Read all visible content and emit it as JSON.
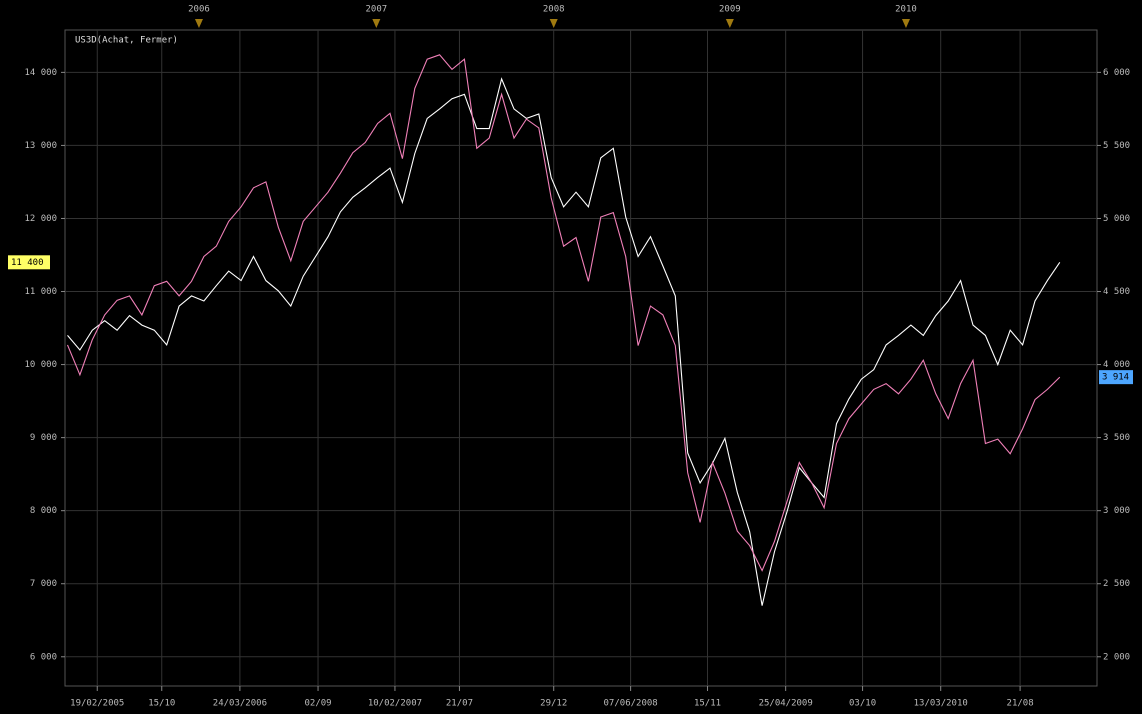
{
  "chart_data": {
    "type": "line",
    "title": "US3D(Achat, Fermer)",
    "x": [
      0,
      1,
      2,
      3,
      4,
      5,
      6,
      7,
      8,
      9,
      10,
      11,
      12,
      13,
      14,
      15,
      16,
      17,
      18,
      19,
      20,
      21,
      22,
      23,
      24,
      25,
      26,
      27,
      28,
      29,
      30,
      31,
      32,
      33,
      34,
      35,
      36,
      37,
      38,
      39,
      40,
      41,
      42,
      43,
      44,
      45,
      46,
      47,
      48,
      49,
      50,
      51,
      52,
      53,
      54,
      55,
      56,
      57,
      58,
      59,
      60,
      61,
      62,
      63,
      64,
      65,
      66,
      67,
      68,
      69,
      70,
      71,
      72,
      73,
      74,
      75,
      76,
      77,
      78,
      79,
      80
    ],
    "xlim": [
      -0.2,
      83
    ],
    "xticks": [
      {
        "value": 2.4,
        "label": "19/02/2005"
      },
      {
        "value": 7.6,
        "label": "15/10"
      },
      {
        "value": 13.9,
        "label": "24/03/2006"
      },
      {
        "value": 20.2,
        "label": "02/09"
      },
      {
        "value": 26.4,
        "label": "10/02/2007"
      },
      {
        "value": 31.6,
        "label": "21/07"
      },
      {
        "value": 39.2,
        "label": "29/12"
      },
      {
        "value": 45.4,
        "label": "07/06/2008"
      },
      {
        "value": 51.6,
        "label": "15/11"
      },
      {
        "value": 57.9,
        "label": "25/04/2009"
      },
      {
        "value": 64.1,
        "label": "03/10"
      },
      {
        "value": 70.4,
        "label": "13/03/2010"
      },
      {
        "value": 76.8,
        "label": "21/08"
      }
    ],
    "top_ticks": [
      {
        "value": 10.6,
        "label": "2006"
      },
      {
        "value": 24.9,
        "label": "2007"
      },
      {
        "value": 39.2,
        "label": "2008"
      },
      {
        "value": 53.4,
        "label": "2009"
      },
      {
        "value": 67.6,
        "label": "2010"
      }
    ],
    "ylim": [
      5600,
      14580
    ],
    "yticks": [
      {
        "value": 6000,
        "label": "6 000"
      },
      {
        "value": 7000,
        "label": "7 000"
      },
      {
        "value": 8000,
        "label": "8 000"
      },
      {
        "value": 9000,
        "label": "9 000"
      },
      {
        "value": 10000,
        "label": "10 000"
      },
      {
        "value": 11000,
        "label": "11 000"
      },
      {
        "value": 12000,
        "label": "12 000"
      },
      {
        "value": 13000,
        "label": "13 000"
      },
      {
        "value": 14000,
        "label": "14 000"
      }
    ],
    "y2lim": [
      1800,
      6290
    ],
    "y2ticks": [
      {
        "value": 2000,
        "label": "2 000"
      },
      {
        "value": 2500,
        "label": "2 500"
      },
      {
        "value": 3000,
        "label": "3 000"
      },
      {
        "value": 3500,
        "label": "3 500"
      },
      {
        "value": 4000,
        "label": "4 000"
      },
      {
        "value": 4500,
        "label": "4 500"
      },
      {
        "value": 5000,
        "label": "5 000"
      },
      {
        "value": 5500,
        "label": "5 500"
      },
      {
        "value": 6000,
        "label": "6 000"
      }
    ],
    "grid": true,
    "series": [
      {
        "name": "US3D",
        "color": "#ffffff",
        "axis": "y",
        "last_label_color": "#ffff66",
        "last_value_label": "11 400",
        "values": [
          10400,
          10200,
          10470,
          10600,
          10470,
          10670,
          10540,
          10470,
          10270,
          10800,
          10940,
          10870,
          11080,
          11280,
          11150,
          11480,
          11150,
          11010,
          10800,
          11210,
          11480,
          11750,
          12090,
          12290,
          12420,
          12560,
          12690,
          12220,
          12890,
          13370,
          13500,
          13640,
          13700,
          13230,
          13230,
          13910,
          13500,
          13370,
          13430,
          12560,
          12160,
          12360,
          12160,
          12830,
          12960,
          12020,
          11480,
          11750,
          11350,
          10940,
          8790,
          8380,
          8650,
          8990,
          8250,
          7710,
          6700,
          7440,
          7980,
          8590,
          8380,
          8180,
          9190,
          9530,
          9800,
          9930,
          10270,
          10400,
          10540,
          10400,
          10670,
          10870,
          11150,
          10540,
          10400,
          10000,
          10470,
          10270,
          10870,
          11150,
          11400
        ]
      },
      {
        "color": "#f080b8",
        "axis": "y2",
        "last_label_color": "#4da6ff",
        "last_value_label": "3 914",
        "values": [
          4135,
          3930,
          4170,
          4340,
          4440,
          4470,
          4340,
          4540,
          4570,
          4470,
          4570,
          4740,
          4810,
          4980,
          5080,
          5210,
          5250,
          4940,
          4710,
          4980,
          5080,
          5180,
          5310,
          5450,
          5520,
          5650,
          5720,
          5410,
          5890,
          6090,
          6120,
          6020,
          6090,
          5480,
          5550,
          5850,
          5550,
          5680,
          5620,
          5140,
          4810,
          4870,
          4570,
          5010,
          5040,
          4740,
          4130,
          4400,
          4340,
          4130,
          3260,
          2920,
          3330,
          3120,
          2860,
          2760,
          2590,
          2790,
          3060,
          3330,
          3190,
          3020,
          3460,
          3630,
          3730,
          3830,
          3870,
          3800,
          3900,
          4030,
          3800,
          3630,
          3870,
          4030,
          3460,
          3490,
          3390,
          3560,
          3760,
          3830,
          3914
        ]
      }
    ]
  }
}
